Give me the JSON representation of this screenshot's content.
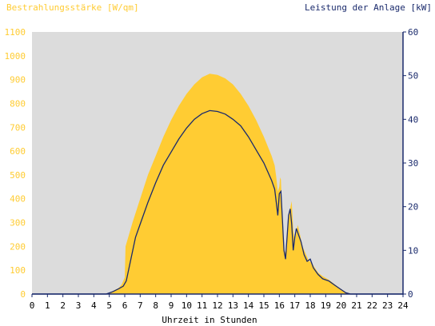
{
  "chart_data": {
    "type": "area",
    "left_axis_title": "Bestrahlungsstärke [W/qm]",
    "right_axis_title": "Leistung der Anlage [kW]",
    "xlabel": "Uhrzeit in Stunden",
    "x_ticks": [
      "0",
      "1",
      "2",
      "3",
      "4",
      "5",
      "6",
      "7",
      "8",
      "9",
      "10",
      "11",
      "12",
      "13",
      "14",
      "15",
      "16",
      "17",
      "18",
      "19",
      "20",
      "21",
      "22",
      "23",
      "24"
    ],
    "left_ticks": [
      "0",
      "100",
      "200",
      "300",
      "400",
      "500",
      "600",
      "700",
      "800",
      "900",
      "1000",
      "1100"
    ],
    "right_ticks": [
      "0",
      "10",
      "20",
      "30",
      "40",
      "50",
      "60"
    ],
    "xlim": [
      0,
      24
    ],
    "ylim_left": [
      0,
      1100
    ],
    "ylim_right": [
      0,
      60
    ],
    "grid": false,
    "colors": {
      "plot_background": "#dcdcdc",
      "irradiance_fill": "#ffcc33",
      "power_line": "#1a2a6c",
      "left_axis_text": "#ffcc33",
      "right_axis_text": "#1a2a6c",
      "axis_line": "#1a2a6c"
    },
    "series": [
      {
        "name": "Bestrahlungsstärke [W/qm]",
        "axis": "left",
        "points": [
          [
            0,
            0
          ],
          [
            4.8,
            0
          ],
          [
            5.0,
            5
          ],
          [
            5.3,
            15
          ],
          [
            5.6,
            25
          ],
          [
            5.8,
            40
          ],
          [
            6.0,
            70
          ],
          [
            6.05,
            200
          ],
          [
            6.5,
            300
          ],
          [
            7.0,
            400
          ],
          [
            7.5,
            500
          ],
          [
            8.0,
            580
          ],
          [
            8.5,
            660
          ],
          [
            9.0,
            730
          ],
          [
            9.5,
            790
          ],
          [
            10.0,
            840
          ],
          [
            10.5,
            880
          ],
          [
            11.0,
            910
          ],
          [
            11.5,
            925
          ],
          [
            12.0,
            920
          ],
          [
            12.5,
            905
          ],
          [
            13.0,
            880
          ],
          [
            13.5,
            840
          ],
          [
            14.0,
            790
          ],
          [
            14.5,
            730
          ],
          [
            15.0,
            660
          ],
          [
            15.5,
            580
          ],
          [
            15.7,
            540
          ],
          [
            15.8,
            490
          ],
          [
            15.9,
            430
          ],
          [
            16.0,
            450
          ],
          [
            16.05,
            490
          ],
          [
            16.1,
            480
          ],
          [
            16.15,
            400
          ],
          [
            16.2,
            280
          ],
          [
            16.3,
            190
          ],
          [
            16.4,
            170
          ],
          [
            16.5,
            250
          ],
          [
            16.6,
            330
          ],
          [
            16.7,
            360
          ],
          [
            16.8,
            390
          ],
          [
            16.9,
            270
          ],
          [
            17.0,
            220
          ],
          [
            17.1,
            260
          ],
          [
            17.2,
            290
          ],
          [
            17.3,
            260
          ],
          [
            17.5,
            200
          ],
          [
            17.7,
            170
          ],
          [
            17.9,
            140
          ],
          [
            18.1,
            130
          ],
          [
            18.3,
            110
          ],
          [
            18.5,
            90
          ],
          [
            18.8,
            75
          ],
          [
            19.2,
            60
          ],
          [
            19.5,
            45
          ],
          [
            19.8,
            30
          ],
          [
            20.1,
            15
          ],
          [
            20.3,
            5
          ],
          [
            20.5,
            0
          ],
          [
            24,
            0
          ]
        ]
      },
      {
        "name": "Leistung der Anlage [kW]",
        "axis": "right",
        "points": [
          [
            0,
            0
          ],
          [
            4.8,
            0
          ],
          [
            5.2,
            0.5
          ],
          [
            5.6,
            1.2
          ],
          [
            5.9,
            1.8
          ],
          [
            6.1,
            3
          ],
          [
            6.4,
            8
          ],
          [
            6.7,
            13
          ],
          [
            7.0,
            16
          ],
          [
            7.5,
            21
          ],
          [
            8.0,
            25.5
          ],
          [
            8.5,
            29.5
          ],
          [
            9.0,
            32.5
          ],
          [
            9.5,
            35.5
          ],
          [
            10.0,
            38
          ],
          [
            10.5,
            40
          ],
          [
            11.0,
            41.3
          ],
          [
            11.5,
            42
          ],
          [
            12.0,
            41.8
          ],
          [
            12.5,
            41.2
          ],
          [
            13.0,
            40
          ],
          [
            13.5,
            38.5
          ],
          [
            14.0,
            36
          ],
          [
            14.5,
            33
          ],
          [
            15.0,
            30
          ],
          [
            15.5,
            26
          ],
          [
            15.7,
            24
          ],
          [
            15.8,
            21
          ],
          [
            15.9,
            18
          ],
          [
            16.0,
            23
          ],
          [
            16.1,
            23.5
          ],
          [
            16.2,
            17
          ],
          [
            16.3,
            10
          ],
          [
            16.4,
            8
          ],
          [
            16.5,
            13
          ],
          [
            16.6,
            18
          ],
          [
            16.7,
            19.5
          ],
          [
            16.8,
            16
          ],
          [
            16.9,
            10
          ],
          [
            17.0,
            13
          ],
          [
            17.1,
            15
          ],
          [
            17.2,
            14
          ],
          [
            17.4,
            12
          ],
          [
            17.6,
            9
          ],
          [
            17.8,
            7.5
          ],
          [
            18.0,
            8
          ],
          [
            18.2,
            6
          ],
          [
            18.5,
            4.5
          ],
          [
            18.8,
            3.5
          ],
          [
            19.2,
            3
          ],
          [
            19.6,
            2
          ],
          [
            20.0,
            1
          ],
          [
            20.3,
            0.3
          ],
          [
            20.6,
            0
          ],
          [
            24,
            0
          ]
        ]
      }
    ]
  }
}
